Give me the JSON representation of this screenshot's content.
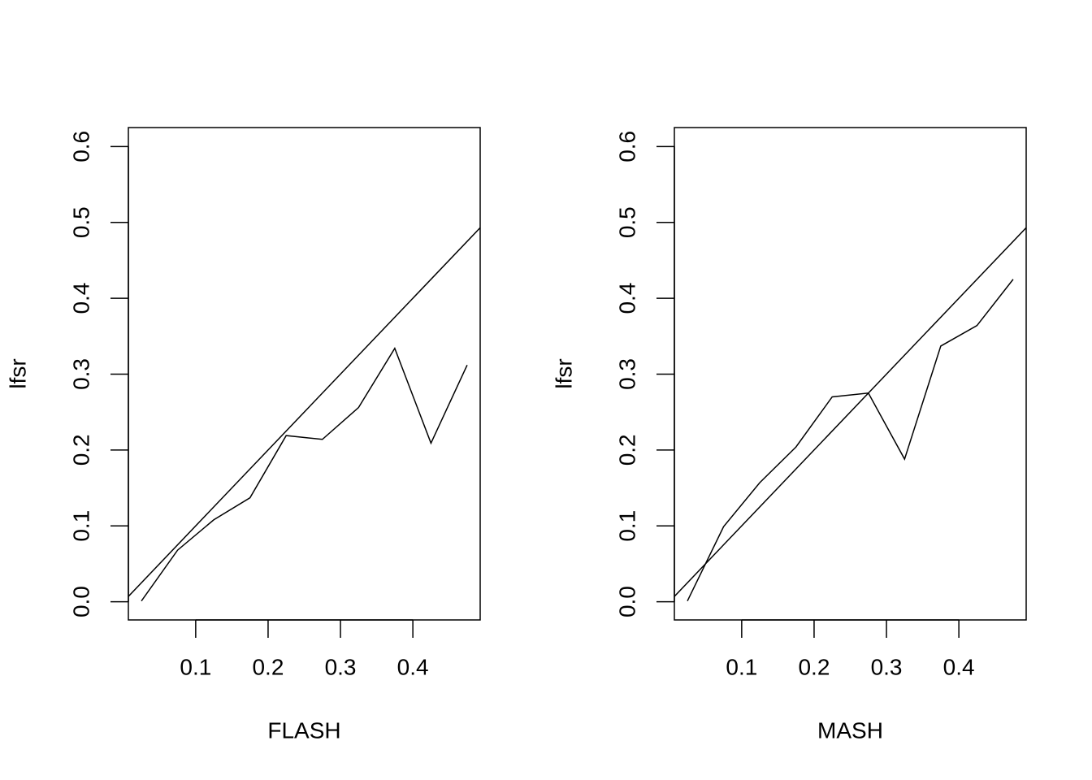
{
  "chart_data": [
    {
      "type": "line",
      "xlabel": "FLASH",
      "ylabel": "lfsr",
      "x": [
        0.025,
        0.075,
        0.125,
        0.175,
        0.225,
        0.275,
        0.325,
        0.375,
        0.425,
        0.475
      ],
      "series": [
        {
          "color": "#000000",
          "values": [
            0.001,
            0.068,
            0.108,
            0.137,
            0.219,
            0.214,
            0.256,
            0.334,
            0.209,
            0.312
          ]
        }
      ],
      "abline": [
        0,
        1
      ],
      "xlim": [
        0.007,
        0.493
      ],
      "ylim": [
        -0.024,
        0.625
      ],
      "xticks": [
        0.1,
        0.2,
        0.3,
        0.4
      ],
      "yticks": [
        {
          "value": 0,
          "label": "0.0"
        },
        0.1,
        0.2,
        0.3,
        0.4,
        0.5,
        0.6
      ]
    },
    {
      "type": "line",
      "xlabel": "MASH",
      "ylabel": "lfsr",
      "x": [
        0.025,
        0.075,
        0.125,
        0.175,
        0.225,
        0.275,
        0.325,
        0.375,
        0.425,
        0.475
      ],
      "series": [
        {
          "color": "#000000",
          "values": [
            0.001,
            0.099,
            0.157,
            0.204,
            0.27,
            0.275,
            0.188,
            0.337,
            0.364,
            0.425
          ]
        }
      ],
      "abline": [
        0,
        1
      ],
      "xlim": [
        0.007,
        0.493
      ],
      "ylim": [
        -0.024,
        0.625
      ],
      "xticks": [
        0.1,
        0.2,
        0.3,
        0.4
      ],
      "yticks": [
        {
          "value": 0,
          "label": "0.0"
        },
        0.1,
        0.2,
        0.3,
        0.4,
        0.5,
        0.6
      ]
    }
  ]
}
